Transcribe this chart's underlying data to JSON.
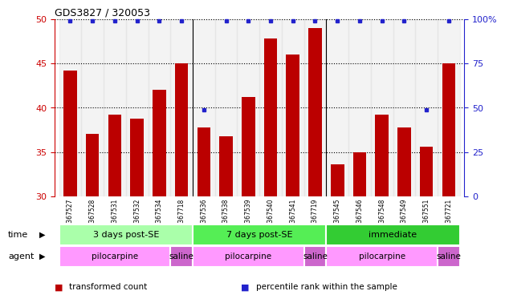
{
  "title": "GDS3827 / 320053",
  "samples": [
    "GSM367527",
    "GSM367528",
    "GSM367531",
    "GSM367532",
    "GSM367534",
    "GSM367718",
    "GSM367536",
    "GSM367538",
    "GSM367539",
    "GSM367540",
    "GSM367541",
    "GSM367719",
    "GSM367545",
    "GSM367546",
    "GSM367548",
    "GSM367549",
    "GSM367551",
    "GSM367721"
  ],
  "transformed_counts": [
    44.2,
    37.0,
    39.2,
    38.8,
    42.0,
    45.0,
    37.8,
    36.8,
    41.2,
    47.8,
    46.0,
    49.0,
    33.6,
    35.0,
    39.2,
    37.8,
    35.6,
    45.0
  ],
  "percentile_values": [
    99,
    99,
    99,
    99,
    99,
    99,
    49,
    99,
    99,
    99,
    99,
    99,
    99,
    99,
    99,
    99,
    49,
    99
  ],
  "ylim_left": [
    30,
    50
  ],
  "ylim_right": [
    0,
    100
  ],
  "yticks_left": [
    30,
    35,
    40,
    45,
    50
  ],
  "yticks_right": [
    0,
    25,
    50,
    75,
    100
  ],
  "bar_color": "#bb0000",
  "dot_color": "#2222cc",
  "time_groups": [
    {
      "label": "3 days post-SE",
      "start": 0,
      "end": 5,
      "color": "#aaffaa"
    },
    {
      "label": "7 days post-SE",
      "start": 6,
      "end": 11,
      "color": "#55ee55"
    },
    {
      "label": "immediate",
      "start": 12,
      "end": 17,
      "color": "#33cc33"
    }
  ],
  "agent_groups": [
    {
      "label": "pilocarpine",
      "start": 0,
      "end": 4,
      "color": "#ff99ff"
    },
    {
      "label": "saline",
      "start": 5,
      "end": 5,
      "color": "#cc66cc"
    },
    {
      "label": "pilocarpine",
      "start": 6,
      "end": 10,
      "color": "#ff99ff"
    },
    {
      "label": "saline",
      "start": 11,
      "end": 11,
      "color": "#cc66cc"
    },
    {
      "label": "pilocarpine",
      "start": 12,
      "end": 16,
      "color": "#ff99ff"
    },
    {
      "label": "saline",
      "start": 17,
      "end": 17,
      "color": "#cc66cc"
    }
  ],
  "legend_items": [
    {
      "label": "transformed count",
      "color": "#bb0000"
    },
    {
      "label": "percentile rank within the sample",
      "color": "#2222cc"
    }
  ],
  "left_axis_color": "#cc0000",
  "right_axis_color": "#2222cc",
  "group_separators": [
    5.5,
    11.5
  ],
  "grid_yticks": [
    35,
    40,
    45
  ],
  "col_bg_color": "#dddddd"
}
